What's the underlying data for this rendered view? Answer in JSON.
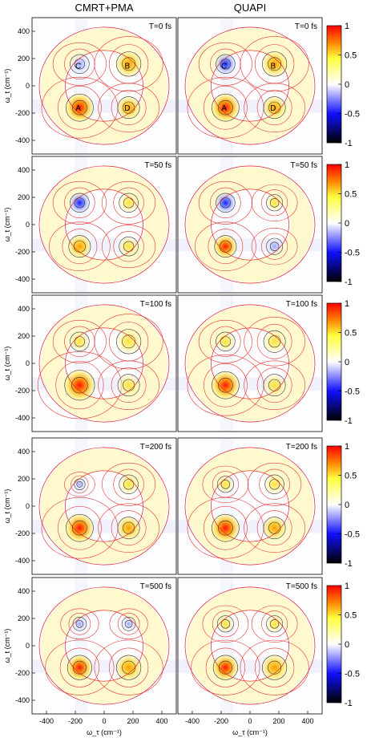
{
  "column_titles": [
    "CMRT+PMA",
    "QUAPI"
  ],
  "chart_data": {
    "type": "heatmap",
    "description_free": true,
    "xlabel": "ω_τ (cm⁻¹)",
    "ylabel": "ω_t (cm⁻¹)",
    "xlim": [
      -500,
      500
    ],
    "ylim": [
      -500,
      500
    ],
    "xticks": [
      -400,
      -200,
      0,
      200,
      400
    ],
    "yticks": [
      -400,
      -200,
      0,
      200,
      400
    ],
    "colorbar_ticks": [
      1,
      0.5,
      0,
      -0.5,
      -1
    ],
    "colorbar_range": [
      -1,
      1
    ],
    "colorbar_colors": [
      "#000000",
      "#1010ff",
      "#ffffff",
      "#ffff40",
      "#ff8000",
      "#ff0000"
    ],
    "panels": [
      {
        "row": 0,
        "col": 0,
        "label": "T=0 fs",
        "peak_labels": [
          {
            "text": "C",
            "x": -180,
            "y": 150
          },
          {
            "text": "B",
            "x": 160,
            "y": 150
          },
          {
            "text": "A",
            "x": -180,
            "y": -160
          },
          {
            "text": "D",
            "x": 160,
            "y": -160
          }
        ]
      },
      {
        "row": 0,
        "col": 1,
        "label": "T=0 fs",
        "peak_labels": [
          {
            "text": "C",
            "x": -180,
            "y": 150
          },
          {
            "text": "B",
            "x": 160,
            "y": 150
          },
          {
            "text": "A",
            "x": -180,
            "y": -160
          },
          {
            "text": "D",
            "x": 160,
            "y": -160
          }
        ]
      },
      {
        "row": 1,
        "col": 0,
        "label": "T=50 fs",
        "peak_labels": []
      },
      {
        "row": 1,
        "col": 1,
        "label": "T=50 fs",
        "peak_labels": []
      },
      {
        "row": 2,
        "col": 0,
        "label": "T=100 fs",
        "peak_labels": []
      },
      {
        "row": 2,
        "col": 1,
        "label": "T=100 fs",
        "peak_labels": []
      },
      {
        "row": 3,
        "col": 0,
        "label": "T=200 fs",
        "peak_labels": []
      },
      {
        "row": 3,
        "col": 1,
        "label": "T=200 fs",
        "peak_labels": []
      },
      {
        "row": 4,
        "col": 0,
        "label": "T=500 fs",
        "peak_labels": []
      },
      {
        "row": 4,
        "col": 1,
        "label": "T=500 fs",
        "peak_labels": []
      }
    ]
  }
}
